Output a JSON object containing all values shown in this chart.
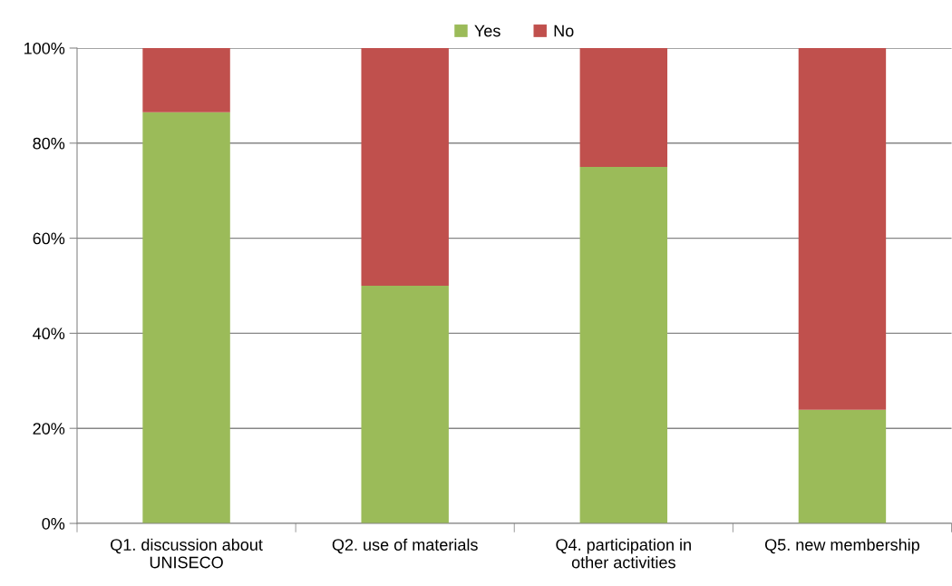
{
  "chart_data": {
    "type": "bar",
    "stacked": true,
    "categories": [
      "Q1. discussion about\nUNISECO",
      "Q2. use of materials",
      "Q4. participation in\nother activities",
      "Q5. new membership"
    ],
    "series": [
      {
        "name": "Yes",
        "color": "#9bbb59",
        "values": [
          86.5,
          50,
          75,
          23.9
        ]
      },
      {
        "name": "No",
        "color": "#c0504d",
        "values": [
          13.5,
          50,
          25,
          76.1
        ]
      }
    ],
    "ylim": [
      0,
      100
    ],
    "yticks": [
      {
        "value": 0,
        "label": "0%"
      },
      {
        "value": 20,
        "label": "20%"
      },
      {
        "value": 40,
        "label": "40%"
      },
      {
        "value": 60,
        "label": "60%"
      },
      {
        "value": 80,
        "label": "80%"
      },
      {
        "value": 100,
        "label": "100%"
      }
    ],
    "grid": "y",
    "legend": "top"
  }
}
